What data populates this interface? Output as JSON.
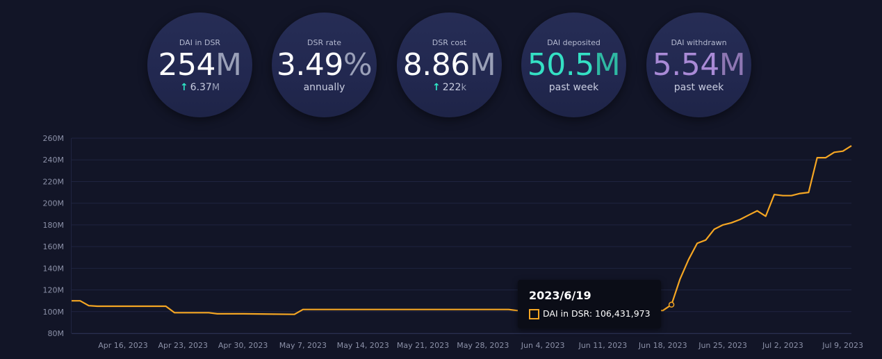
{
  "stats": [
    {
      "label": "DAI in DSR",
      "value": "254",
      "unit": "M",
      "sub_arrow": "↑",
      "sub_value": "6.37",
      "sub_unit": "M"
    },
    {
      "label": "DSR rate",
      "value": "3.49",
      "unit": "%",
      "sub": "annually"
    },
    {
      "label": "DSR cost",
      "value": "8.86",
      "unit": "M",
      "sub_arrow": "↑",
      "sub_value": "222",
      "sub_unit": "k"
    },
    {
      "label": "DAI deposited",
      "value": "50.5",
      "unit": "M",
      "sub": "past week"
    },
    {
      "label": "DAI withdrawn",
      "value": "5.54",
      "unit": "M",
      "sub": "past week"
    }
  ],
  "colors": {
    "background": "#121527",
    "line": "#f5a623",
    "teal": "#34e0c4",
    "purple": "#a98ad6"
  },
  "tooltip": {
    "date": "2023/6/19",
    "label": "DAI in DSR: 106,431,973"
  },
  "chart_data": {
    "type": "line",
    "grid": true,
    "legend": "none",
    "ylim": [
      80,
      260
    ],
    "y_unit": "M",
    "y_ticks": [
      "80M",
      "100M",
      "120M",
      "140M",
      "160M",
      "180M",
      "200M",
      "220M",
      "240M",
      "260M"
    ],
    "x_ticks": [
      "Apr 16, 2023",
      "Apr 23, 2023",
      "Apr 30, 2023",
      "May 7, 2023",
      "May 14, 2023",
      "May 21, 2023",
      "May 28, 2023",
      "Jun 4, 2023",
      "Jun 11, 2023",
      "Jun 18, 2023",
      "Jun 25, 2023",
      "Jul 2, 2023",
      "Jul 9, 2023"
    ],
    "x_range": [
      "2023-04-10",
      "2023-07-10"
    ],
    "series": [
      {
        "name": "DAI in DSR",
        "points": [
          [
            "2023-04-10",
            110
          ],
          [
            "2023-04-11",
            110
          ],
          [
            "2023-04-12",
            105.5
          ],
          [
            "2023-04-13",
            105
          ],
          [
            "2023-04-20",
            105
          ],
          [
            "2023-04-21",
            105
          ],
          [
            "2023-04-22",
            99
          ],
          [
            "2023-04-26",
            99
          ],
          [
            "2023-04-27",
            98
          ],
          [
            "2023-04-30",
            98
          ],
          [
            "2023-05-06",
            97.5
          ],
          [
            "2023-05-07",
            102
          ],
          [
            "2023-05-08",
            102
          ],
          [
            "2023-05-31",
            102
          ],
          [
            "2023-06-01",
            101
          ],
          [
            "2023-06-04",
            101
          ],
          [
            "2023-06-18",
            101
          ],
          [
            "2023-06-19",
            106.4
          ],
          [
            "2023-06-20",
            130
          ],
          [
            "2023-06-21",
            148
          ],
          [
            "2023-06-22",
            163
          ],
          [
            "2023-06-23",
            166
          ],
          [
            "2023-06-24",
            176
          ],
          [
            "2023-06-25",
            180
          ],
          [
            "2023-06-26",
            182
          ],
          [
            "2023-06-27",
            185
          ],
          [
            "2023-06-28",
            189
          ],
          [
            "2023-06-29",
            193
          ],
          [
            "2023-06-30",
            188
          ],
          [
            "2023-07-01",
            208
          ],
          [
            "2023-07-02",
            207
          ],
          [
            "2023-07-03",
            207
          ],
          [
            "2023-07-04",
            209
          ],
          [
            "2023-07-05",
            210
          ],
          [
            "2023-07-06",
            242
          ],
          [
            "2023-07-07",
            242
          ],
          [
            "2023-07-08",
            247
          ],
          [
            "2023-07-09",
            248
          ],
          [
            "2023-07-10",
            253
          ]
        ]
      }
    ]
  }
}
